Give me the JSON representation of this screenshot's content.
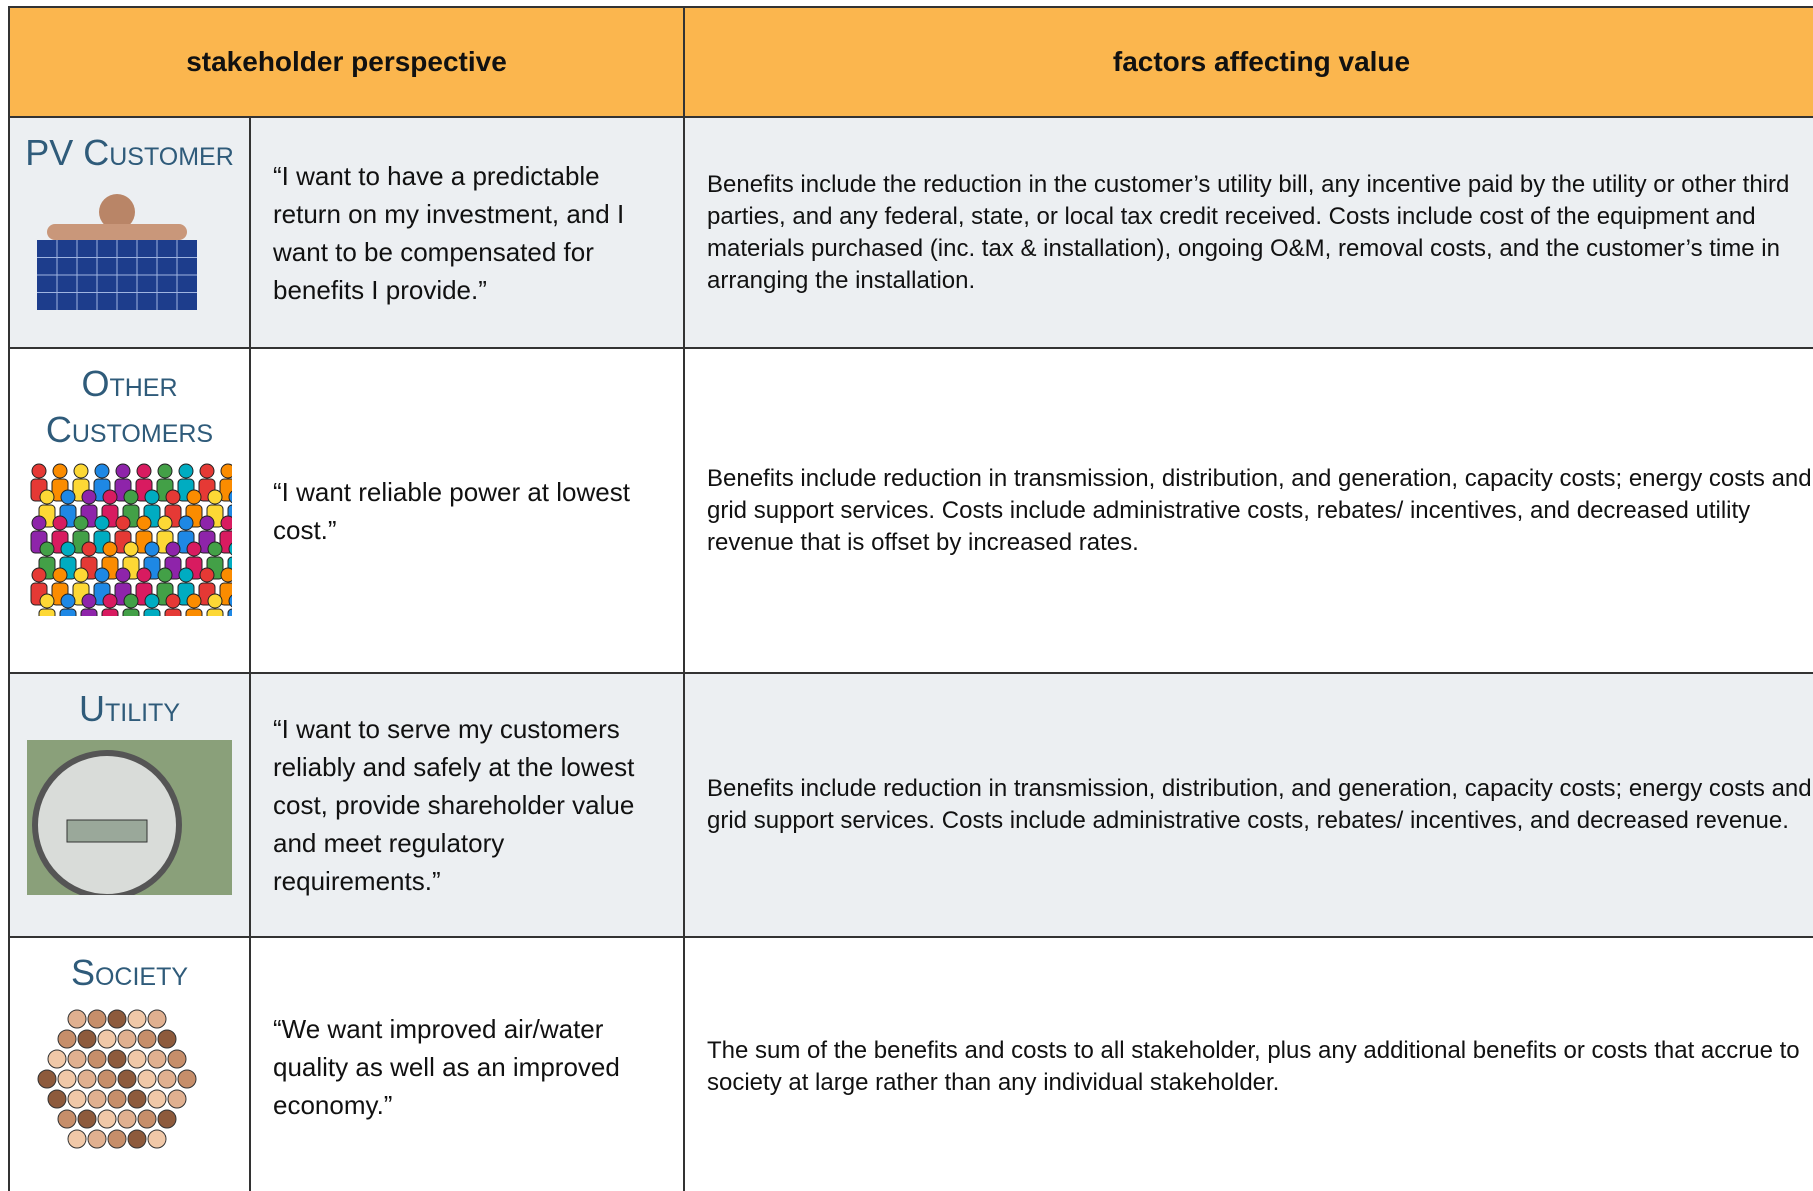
{
  "table": {
    "header": [
      "stakeholder perspective",
      "factors affecting value"
    ],
    "rows": [
      {
        "name": "PV Customer",
        "quote": "“I want to have a predictable return on my investment, and I want to be compensated for benefits I provide.”",
        "factors": "Benefits include the reduction in the customer’s utility bill, any incentive paid by the utility or other third parties, and any federal, state, or local tax credit received. Costs include cost of the equipment and materials purchased (inc. tax & installation), ongoing O&M, removal costs, and the customer’s time in arranging the installation."
      },
      {
        "name": "Other Customers",
        "quote": "“I want reliable power at lowest cost.”",
        "factors": "Benefits include reduction in transmission, distribution, and generation, capacity costs; energy costs and grid support services. Costs include administrative costs, rebates/ incentives, and decreased utility revenue that is offset by increased rates."
      },
      {
        "name": "Utility",
        "quote": "“I want to serve my customers reliably and safely at the lowest cost, provide shareholder value and meet regulatory requirements.”",
        "factors": "Benefits include reduction in transmission, distribution, and generation, capacity costs; energy costs and grid support services.  Costs include administrative costs, rebates/ incentives, and decreased revenue."
      },
      {
        "name": "Society",
        "quote": "“We want improved air/water quality as well as an improved economy.”",
        "factors": "The sum of the benefits and costs to all stakeholder, plus any additional benefits or costs that accrue to society at large rather than any individual stakeholder."
      }
    ]
  }
}
